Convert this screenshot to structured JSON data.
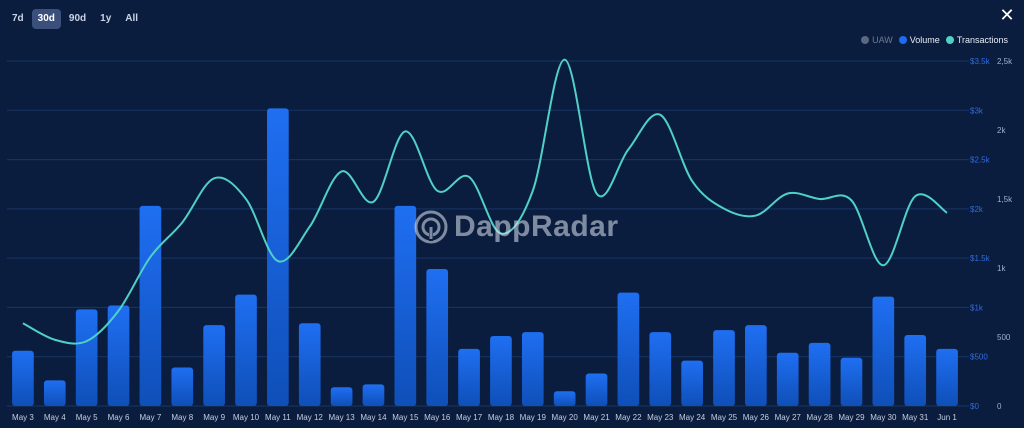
{
  "range_tabs": [
    {
      "label": "7d",
      "active": false
    },
    {
      "label": "30d",
      "active": true
    },
    {
      "label": "90d",
      "active": false
    },
    {
      "label": "1y",
      "active": false
    },
    {
      "label": "All",
      "active": false
    }
  ],
  "close_icon": "close-icon",
  "legend": [
    {
      "label": "UAW",
      "color": "#5b6882",
      "muted": true
    },
    {
      "label": "Volume",
      "color": "#1e6cf0",
      "muted": false
    },
    {
      "label": "Transactions",
      "color": "#4fd1c5",
      "muted": false
    }
  ],
  "watermark": {
    "text": "DappRadar"
  },
  "chart_data": {
    "type": "bar",
    "categories": [
      "May 3",
      "May 4",
      "May 5",
      "May 6",
      "May 7",
      "May 8",
      "May 9",
      "May 10",
      "May 11",
      "May 12",
      "May 13",
      "May 14",
      "May 15",
      "May 16",
      "May 17",
      "May 18",
      "May 19",
      "May 20",
      "May 21",
      "May 22",
      "May 23",
      "May 24",
      "May 25",
      "May 26",
      "May 27",
      "May 28",
      "May 29",
      "May 30",
      "May 31",
      "Jun 1"
    ],
    "series": [
      {
        "name": "Volume",
        "type": "bar",
        "axis": "left",
        "color": "#1e6cf0",
        "values": [
          560,
          260,
          980,
          1020,
          2030,
          390,
          820,
          1130,
          3020,
          840,
          190,
          220,
          2030,
          1390,
          580,
          710,
          750,
          150,
          330,
          1150,
          750,
          460,
          770,
          820,
          540,
          640,
          490,
          1110,
          720,
          580
        ]
      },
      {
        "name": "Transactions",
        "type": "line",
        "axis": "right",
        "color": "#4fd1c5",
        "values": [
          600,
          480,
          470,
          690,
          1080,
          1330,
          1650,
          1500,
          1050,
          1300,
          1700,
          1480,
          1990,
          1560,
          1660,
          1250,
          1560,
          2510,
          1540,
          1860,
          2110,
          1630,
          1430,
          1380,
          1540,
          1500,
          1490,
          1020,
          1520,
          1400
        ]
      }
    ],
    "y_left": {
      "ticks": [
        "$0",
        "$500",
        "$1k",
        "$1.5k",
        "$2k",
        "$2.5k",
        "$3k",
        "$3.5k"
      ],
      "range": [
        0,
        3500
      ]
    },
    "y_right": {
      "ticks": [
        "0",
        "500",
        "1k",
        "1,5k",
        "2k",
        "2,5k"
      ],
      "range": [
        0,
        2500
      ]
    },
    "grid": true,
    "legend_position": "top-right"
  }
}
